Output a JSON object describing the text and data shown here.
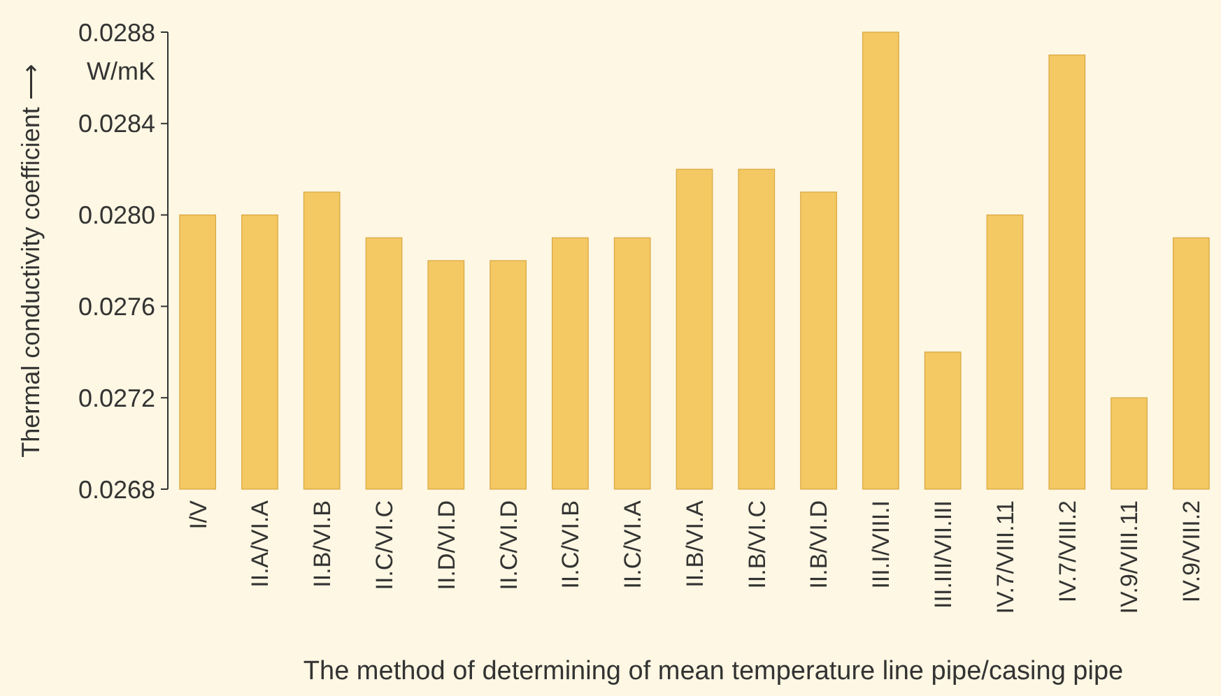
{
  "chart_data": {
    "type": "bar",
    "xlabel": "The method of determining of mean temperature line pipe/casing pipe",
    "ylabel": "Thermal conductivity coefficient ⟶",
    "annotations": [
      "W/mK"
    ],
    "categories": [
      "I/V",
      "II.A/VI.A",
      "II.B/VI.B",
      "II.C/VI.C",
      "II.D/VI.D",
      "II.C/VI.D",
      "II.C/VI.B",
      "II.C/VI.A",
      "II.B/VI.A",
      "II.B/VI.C",
      "II.B/VI.D",
      "III.I/VIII.I",
      "III.III/VII.III",
      "IV.7/VIII.11",
      "IV.7/VIII.2",
      "IV.9/VIII.11",
      "IV.9/VIII.2"
    ],
    "values": [
      0.028,
      0.028,
      0.0281,
      0.0279,
      0.0278,
      0.0278,
      0.0279,
      0.0279,
      0.0282,
      0.0282,
      0.0281,
      0.0288,
      0.0274,
      0.028,
      0.0287,
      0.0272,
      0.0279
    ],
    "color": "#f4c862",
    "ylim": [
      0.0268,
      0.0288
    ],
    "yticks": [
      0.0268,
      0.0272,
      0.0276,
      {
        "value": 0.028,
        "label": "0.0280"
      },
      0.0284,
      0.0288
    ],
    "grid": false
  }
}
